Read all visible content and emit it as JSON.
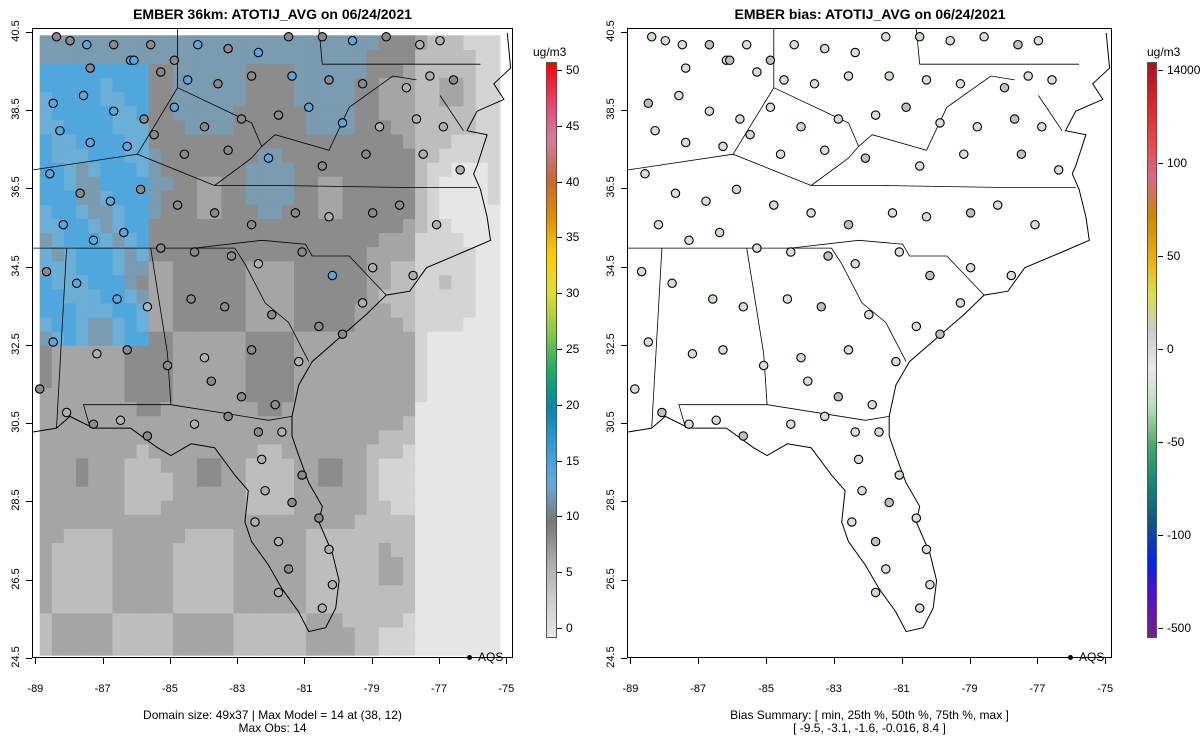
{
  "left_panel": {
    "title": "EMBER 36km: ATOTIJ_AVG on 06/24/2021",
    "y_ticks": [
      "40.5",
      "38.5",
      "36.5",
      "34.5",
      "32.5",
      "30.5",
      "28.5",
      "26.5",
      "24.5"
    ],
    "x_ticks": [
      "-89",
      "-87",
      "-85",
      "-83",
      "-81",
      "-79",
      "-77",
      "-75"
    ],
    "footer_line1": "Domain size: 49x37 | Max Model = 14 at (38, 12)",
    "footer_line2": "Max Obs: 14",
    "legend": "AQS",
    "colorbar": {
      "unit": "ug/m3",
      "labels": [
        "50",
        "45",
        "40",
        "35",
        "30",
        "25",
        "20",
        "15",
        "10",
        "5",
        "0"
      ],
      "colors": [
        "#ff0000",
        "#e8406a",
        "#d080a0",
        "#cc6633",
        "#e08a00",
        "#ffcc00",
        "#dddd33",
        "#88cc44",
        "#22aa66",
        "#0088aa",
        "#3399dd",
        "#66aadd",
        "#777777",
        "#aaaaaa",
        "#cccccc",
        "#e6e6e6"
      ]
    }
  },
  "right_panel": {
    "title": "EMBER bias: ATOTIJ_AVG on 06/24/2021",
    "y_ticks": [
      "40.5",
      "38.5",
      "36.5",
      "34.5",
      "32.5",
      "30.5",
      "28.5",
      "26.5",
      "24.5"
    ],
    "x_ticks": [
      "-89",
      "-87",
      "-85",
      "-83",
      "-81",
      "-79",
      "-77",
      "-75"
    ],
    "footer_line1": "Bias Summary: [ min, 25th %, 50th %, 75th %, max ]",
    "footer_line2": "[ -9.5,   -3.1,   -1.6,   -0.016,   8.4 ]",
    "legend": "AQS",
    "colorbar": {
      "unit": "ug/m3",
      "labels": [
        "14000",
        "100",
        "50",
        "0",
        "-50",
        "-100",
        "-500"
      ],
      "colors": [
        "#aa1122",
        "#dd2222",
        "#ee4444",
        "#dd6688",
        "#cc8800",
        "#eeaa00",
        "#dddd44",
        "#cccccc",
        "#e8e8e8",
        "#bbddbb",
        "#44aa66",
        "#118877",
        "#115588",
        "#0022ee",
        "#5511cc",
        "#772288"
      ]
    }
  },
  "map_data": {
    "type": "scatter_map",
    "lon_range": [
      -89.1,
      -74.8
    ],
    "lat_range": [
      24.5,
      40.6
    ],
    "site_network": "AQS",
    "model_max": 14,
    "model_max_cell": [
      38,
      12
    ],
    "obs_max": 14,
    "bias_summary": {
      "min": -9.5,
      "p25": -3.1,
      "p50": -1.6,
      "p75": -0.016,
      "max": 8.4
    }
  }
}
